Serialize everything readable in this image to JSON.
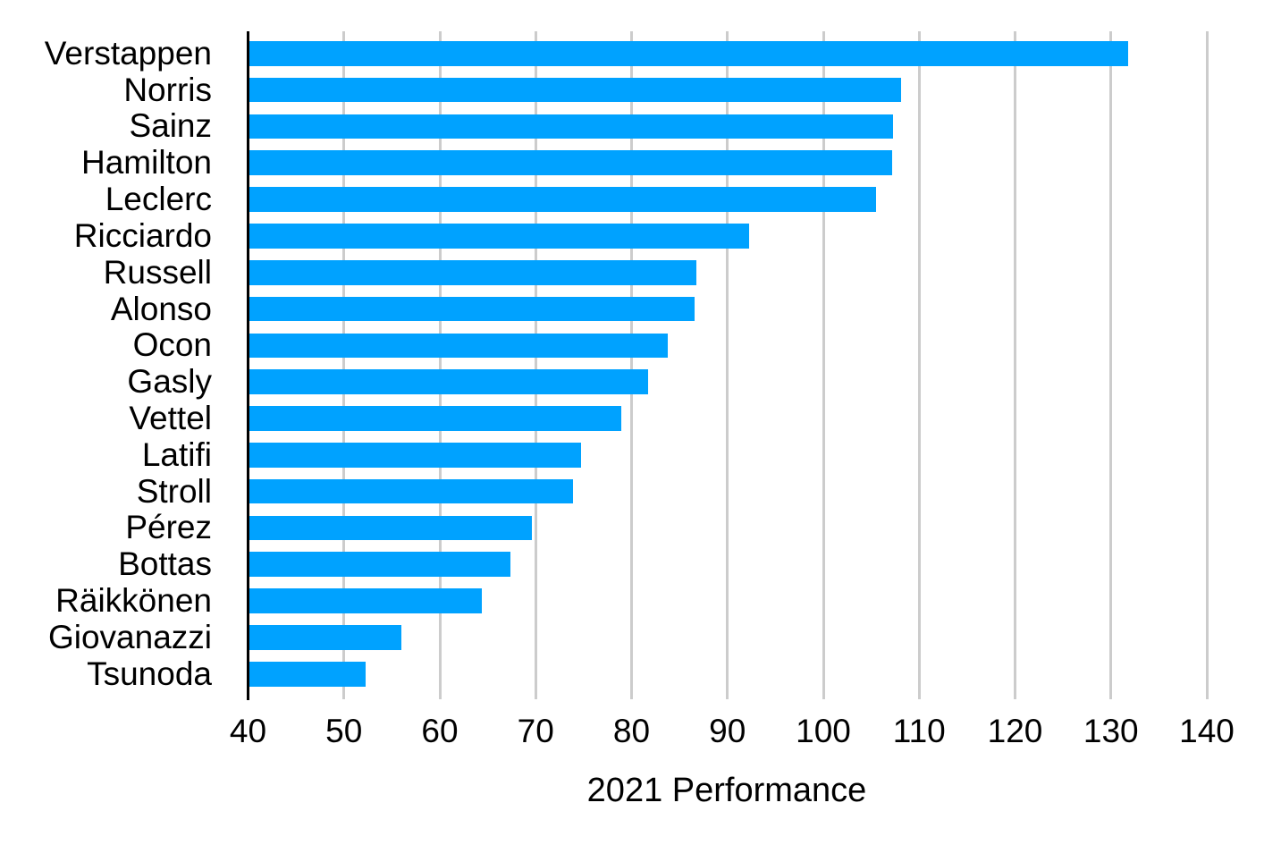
{
  "chart_data": {
    "type": "bar",
    "orientation": "horizontal",
    "title": "",
    "xlabel": "2021 Performance",
    "ylabel": "",
    "categories": [
      "Verstappen",
      "Norris",
      "Sainz",
      "Hamilton",
      "Leclerc",
      "Ricciardo",
      "Russell",
      "Alonso",
      "Ocon",
      "Gasly",
      "Vettel",
      "Latifi",
      "Stroll",
      "Pérez",
      "Bottas",
      "Räikkönen",
      "Giovanazzi",
      "Tsunoda"
    ],
    "values": [
      131.8,
      108.1,
      107.3,
      107.2,
      105.5,
      92.3,
      86.8,
      86.6,
      83.8,
      81.7,
      78.9,
      74.7,
      73.9,
      69.6,
      67.4,
      64.4,
      56.0,
      52.3
    ],
    "xlim": [
      40,
      145
    ],
    "xticks": [
      40,
      50,
      60,
      70,
      80,
      90,
      100,
      110,
      120,
      130,
      140
    ],
    "grid": "vertical",
    "legend": "none",
    "bar_color": "#00A2FF",
    "gridline_color": "#CCCCCC",
    "axis_line_color": "#000000",
    "text_color": "#000000",
    "background_color": "#FFFFFF"
  }
}
